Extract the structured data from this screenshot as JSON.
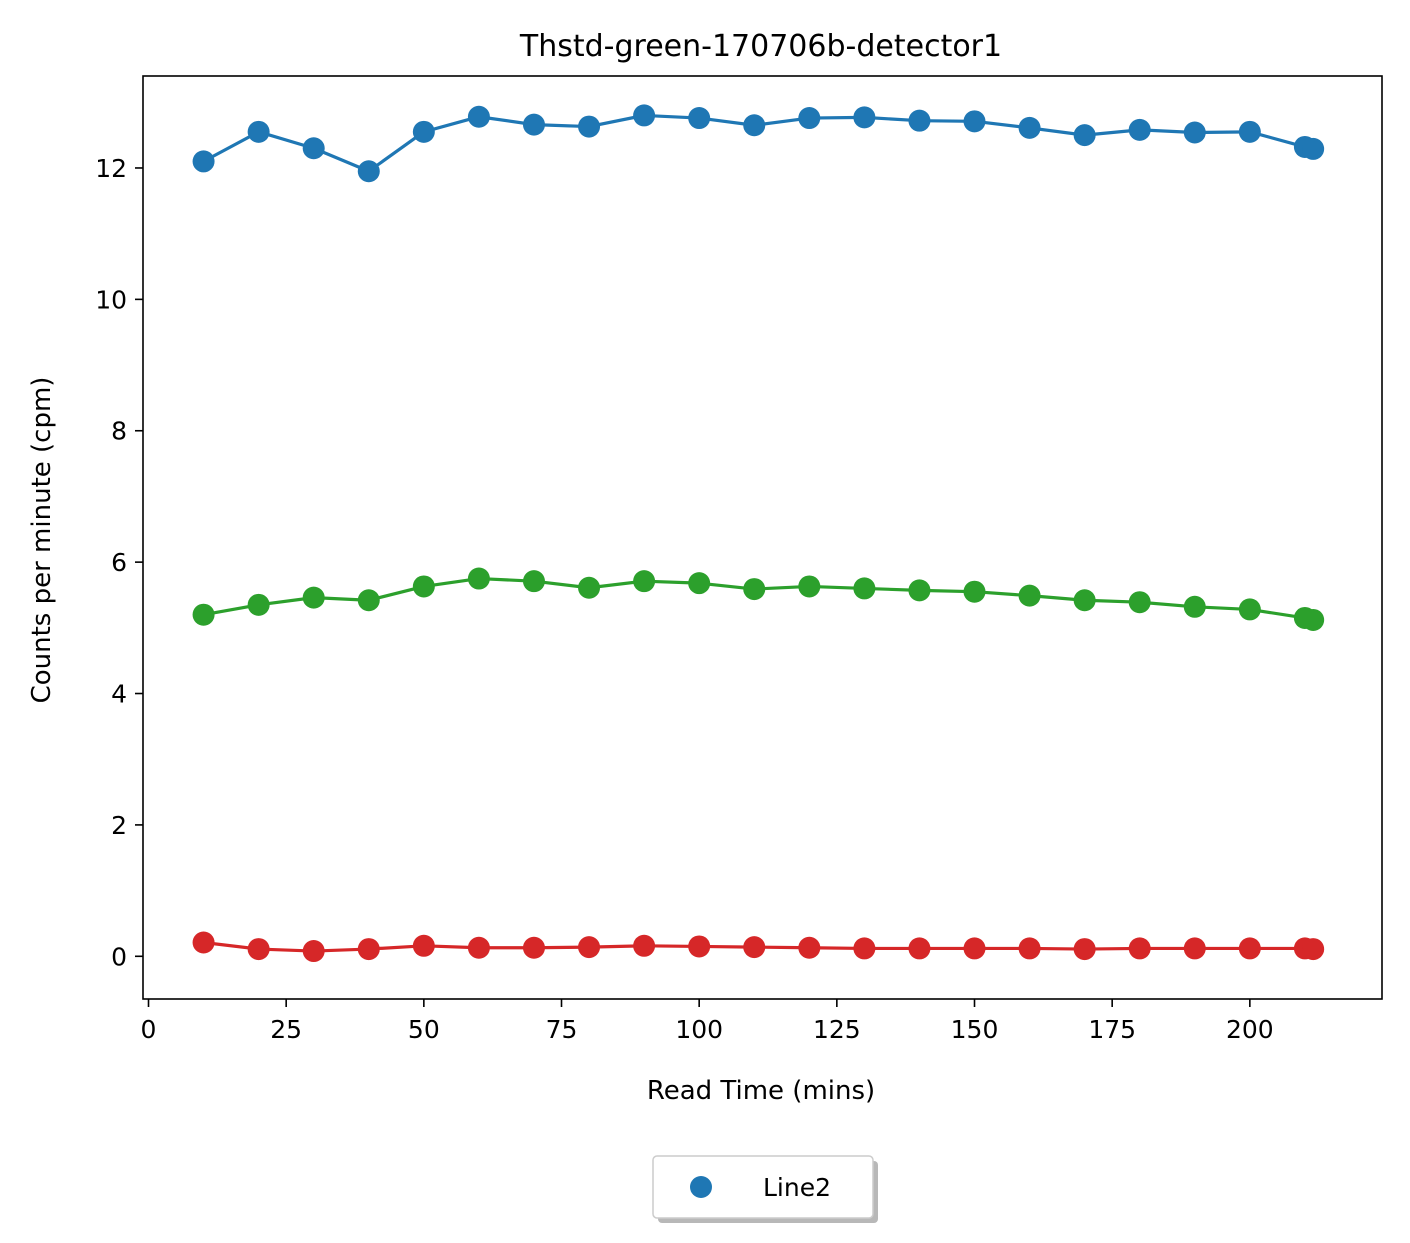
{
  "chart_data": {
    "type": "line",
    "title": "Thstd-green-170706b-detector1",
    "xlabel": "Read Time (mins)",
    "ylabel": "Counts per minute (cpm)",
    "xlim": [
      -1,
      224
    ],
    "ylim": [
      -0.65,
      13.4
    ],
    "xticks": [
      0,
      25,
      50,
      75,
      100,
      125,
      150,
      175,
      200
    ],
    "yticks": [
      0,
      2,
      4,
      6,
      8,
      10,
      12
    ],
    "grid": false,
    "legend": {
      "position": "below-center",
      "entries": [
        "Line2"
      ]
    },
    "x": [
      10,
      20,
      30,
      40,
      50,
      60,
      70,
      80,
      90,
      100,
      110,
      120,
      130,
      140,
      150,
      160,
      170,
      180,
      190,
      200,
      210,
      211.5
    ],
    "series": [
      {
        "color": "#1f77b4",
        "values": [
          12.1,
          12.55,
          12.3,
          11.95,
          12.55,
          12.78,
          12.66,
          12.63,
          12.8,
          12.76,
          12.65,
          12.76,
          12.77,
          12.72,
          12.71,
          12.61,
          12.5,
          12.58,
          12.54,
          12.55,
          12.32,
          12.29
        ]
      },
      {
        "color": "#2ca02c",
        "values": [
          5.2,
          5.35,
          5.46,
          5.42,
          5.63,
          5.75,
          5.71,
          5.61,
          5.71,
          5.68,
          5.59,
          5.63,
          5.6,
          5.57,
          5.55,
          5.49,
          5.42,
          5.39,
          5.32,
          5.28,
          5.15,
          5.12
        ]
      },
      {
        "color": "#d62728",
        "values": [
          0.21,
          0.11,
          0.08,
          0.11,
          0.16,
          0.13,
          0.13,
          0.14,
          0.16,
          0.15,
          0.14,
          0.13,
          0.12,
          0.12,
          0.12,
          0.12,
          0.11,
          0.12,
          0.12,
          0.12,
          0.12,
          0.11
        ]
      }
    ]
  }
}
